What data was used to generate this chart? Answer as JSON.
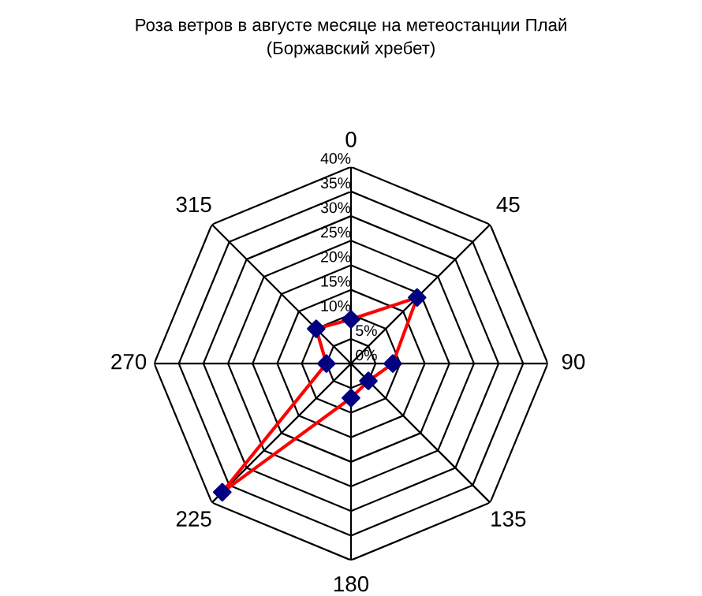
{
  "chart_data": {
    "type": "radar",
    "title": "Роза ветров в августе месяце на метеостанции Плай\n(Боржавский хребет)",
    "categories": [
      "0",
      "45",
      "90",
      "135",
      "180",
      "225",
      "270",
      "315"
    ],
    "series": [
      {
        "color": "#ff0000",
        "colors": [
          "#000080",
          "#000080",
          "#000080",
          "#000080",
          "#000080",
          "#000080",
          "#000080",
          "#000080"
        ],
        "values": [
          9,
          19,
          8.5,
          5,
          7,
          37,
          5,
          10
        ]
      }
    ],
    "ylim": [
      0,
      40
    ],
    "yticks": [
      {
        "value": 0,
        "label": "0%"
      },
      {
        "value": 5,
        "label": "5%"
      },
      {
        "value": 10,
        "label": "10%"
      },
      {
        "value": 15,
        "label": "15%"
      },
      {
        "value": 20,
        "label": "20%"
      },
      {
        "value": 25,
        "label": "25%"
      },
      {
        "value": 30,
        "label": "30%"
      },
      {
        "value": 35,
        "label": "35%"
      },
      {
        "value": 40,
        "label": "40%"
      }
    ],
    "grid": true,
    "marker": "diamond",
    "line_style": "solid"
  }
}
